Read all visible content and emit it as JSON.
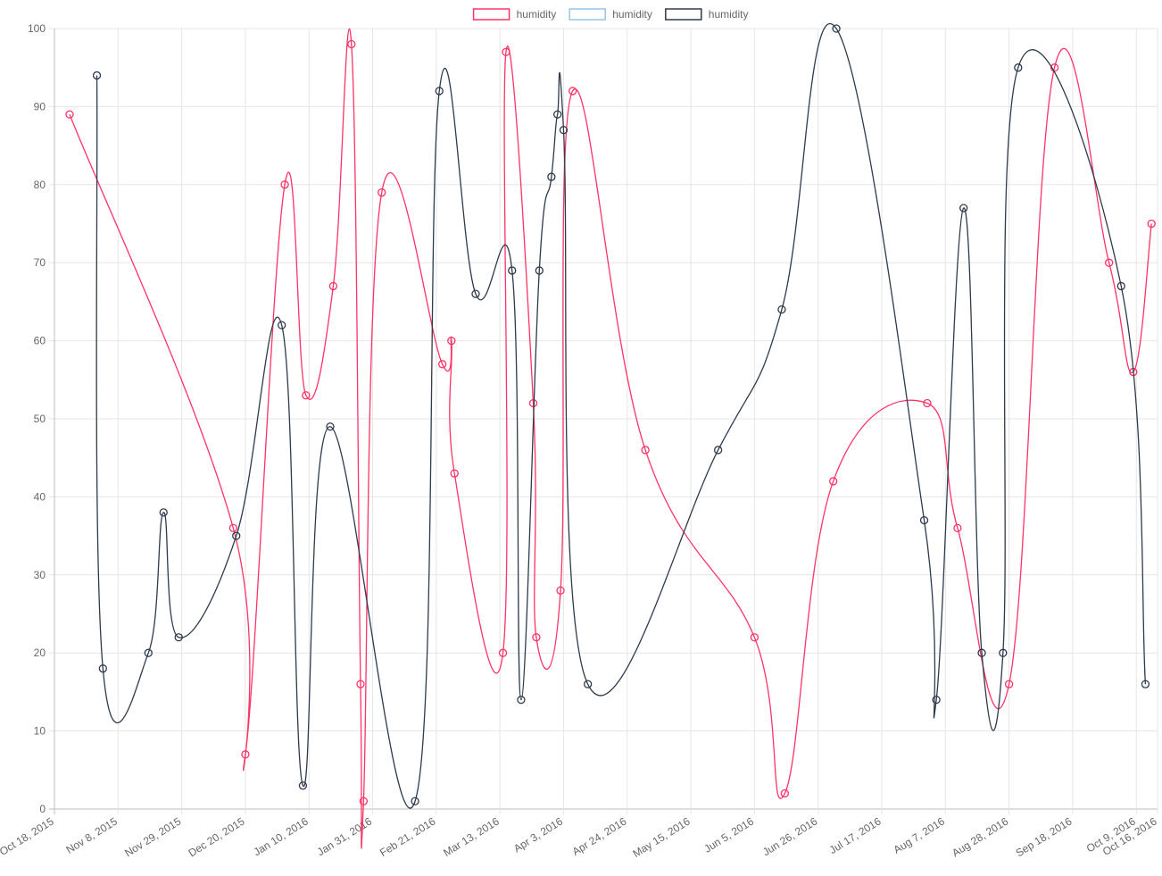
{
  "chart_data": {
    "type": "line",
    "legend_position": "top",
    "grid": true,
    "y_ticks": [
      "0",
      "10",
      "20",
      "30",
      "40",
      "50",
      "60",
      "70",
      "80",
      "90",
      "100"
    ],
    "ylim": [
      0,
      100
    ],
    "x_ticks": [
      "Oct 18, 2015",
      "Nov 8, 2015",
      "Nov 29, 2015",
      "Dec 20, 2015",
      "Jan 10, 2016",
      "Jan 31, 2016",
      "Feb 21, 2016",
      "Mar 13, 2016",
      "Apr 3, 2016",
      "Apr 24, 2016",
      "May 15, 2016",
      "Jun 5, 2016",
      "Jun 26, 2016",
      "Jul 17, 2016",
      "Aug 7, 2016",
      "Aug 28, 2016",
      "Sep 18, 2016",
      "Oct 9, 2016",
      "Oct 16, 2016"
    ],
    "xlim": [
      "2015-10-18",
      "2016-10-16"
    ],
    "series": [
      {
        "name": "humidity",
        "color": "#ff3366",
        "points": [
          {
            "x": "2015-10-23",
            "y": 89
          },
          {
            "x": "2015-12-16",
            "y": 36
          },
          {
            "x": "2015-12-20",
            "y": 7
          },
          {
            "x": "2016-01-02",
            "y": 80
          },
          {
            "x": "2016-01-09",
            "y": 53
          },
          {
            "x": "2016-01-18",
            "y": 67
          },
          {
            "x": "2016-01-24",
            "y": 98
          },
          {
            "x": "2016-01-27",
            "y": 16
          },
          {
            "x": "2016-01-28",
            "y": 1
          },
          {
            "x": "2016-02-03",
            "y": 79
          },
          {
            "x": "2016-02-23",
            "y": 57
          },
          {
            "x": "2016-02-26",
            "y": 60
          },
          {
            "x": "2016-02-27",
            "y": 43
          },
          {
            "x": "2016-03-14",
            "y": 20
          },
          {
            "x": "2016-03-15",
            "y": 97
          },
          {
            "x": "2016-03-24",
            "y": 52
          },
          {
            "x": "2016-03-25",
            "y": 22
          },
          {
            "x": "2016-04-02",
            "y": 28
          },
          {
            "x": "2016-04-06",
            "y": 92
          },
          {
            "x": "2016-04-30",
            "y": 46
          },
          {
            "x": "2016-06-05",
            "y": 22
          },
          {
            "x": "2016-06-15",
            "y": 2
          },
          {
            "x": "2016-07-01",
            "y": 42
          },
          {
            "x": "2016-08-01",
            "y": 52
          },
          {
            "x": "2016-08-11",
            "y": 36
          },
          {
            "x": "2016-08-28",
            "y": 16
          },
          {
            "x": "2016-09-12",
            "y": 95
          },
          {
            "x": "2016-09-30",
            "y": 70
          },
          {
            "x": "2016-10-08",
            "y": 56
          },
          {
            "x": "2016-10-14",
            "y": 75
          }
        ]
      },
      {
        "name": "humidity",
        "color": "#9ac4e3",
        "points": []
      },
      {
        "name": "humidity",
        "color": "#2e3a4d",
        "points": [
          {
            "x": "2015-11-01",
            "y": 94
          },
          {
            "x": "2015-11-03",
            "y": 18
          },
          {
            "x": "2015-11-18",
            "y": 20
          },
          {
            "x": "2015-11-23",
            "y": 38
          },
          {
            "x": "2015-11-28",
            "y": 22
          },
          {
            "x": "2015-12-17",
            "y": 35
          },
          {
            "x": "2016-01-01",
            "y": 62
          },
          {
            "x": "2016-01-08",
            "y": 3
          },
          {
            "x": "2016-01-17",
            "y": 49
          },
          {
            "x": "2016-02-14",
            "y": 1
          },
          {
            "x": "2016-02-22",
            "y": 92
          },
          {
            "x": "2016-03-05",
            "y": 66
          },
          {
            "x": "2016-03-17",
            "y": 69
          },
          {
            "x": "2016-03-20",
            "y": 14
          },
          {
            "x": "2016-03-26",
            "y": 69
          },
          {
            "x": "2016-03-30",
            "y": 81
          },
          {
            "x": "2016-04-01",
            "y": 89
          },
          {
            "x": "2016-04-03",
            "y": 87
          },
          {
            "x": "2016-04-11",
            "y": 16
          },
          {
            "x": "2016-05-24",
            "y": 46
          },
          {
            "x": "2016-06-14",
            "y": 64
          },
          {
            "x": "2016-07-02",
            "y": 100
          },
          {
            "x": "2016-07-31",
            "y": 37
          },
          {
            "x": "2016-08-04",
            "y": 14
          },
          {
            "x": "2016-08-13",
            "y": 77
          },
          {
            "x": "2016-08-19",
            "y": 20
          },
          {
            "x": "2016-08-26",
            "y": 20
          },
          {
            "x": "2016-08-31",
            "y": 95
          },
          {
            "x": "2016-10-04",
            "y": 67
          },
          {
            "x": "2016-10-12",
            "y": 16
          }
        ]
      }
    ]
  }
}
